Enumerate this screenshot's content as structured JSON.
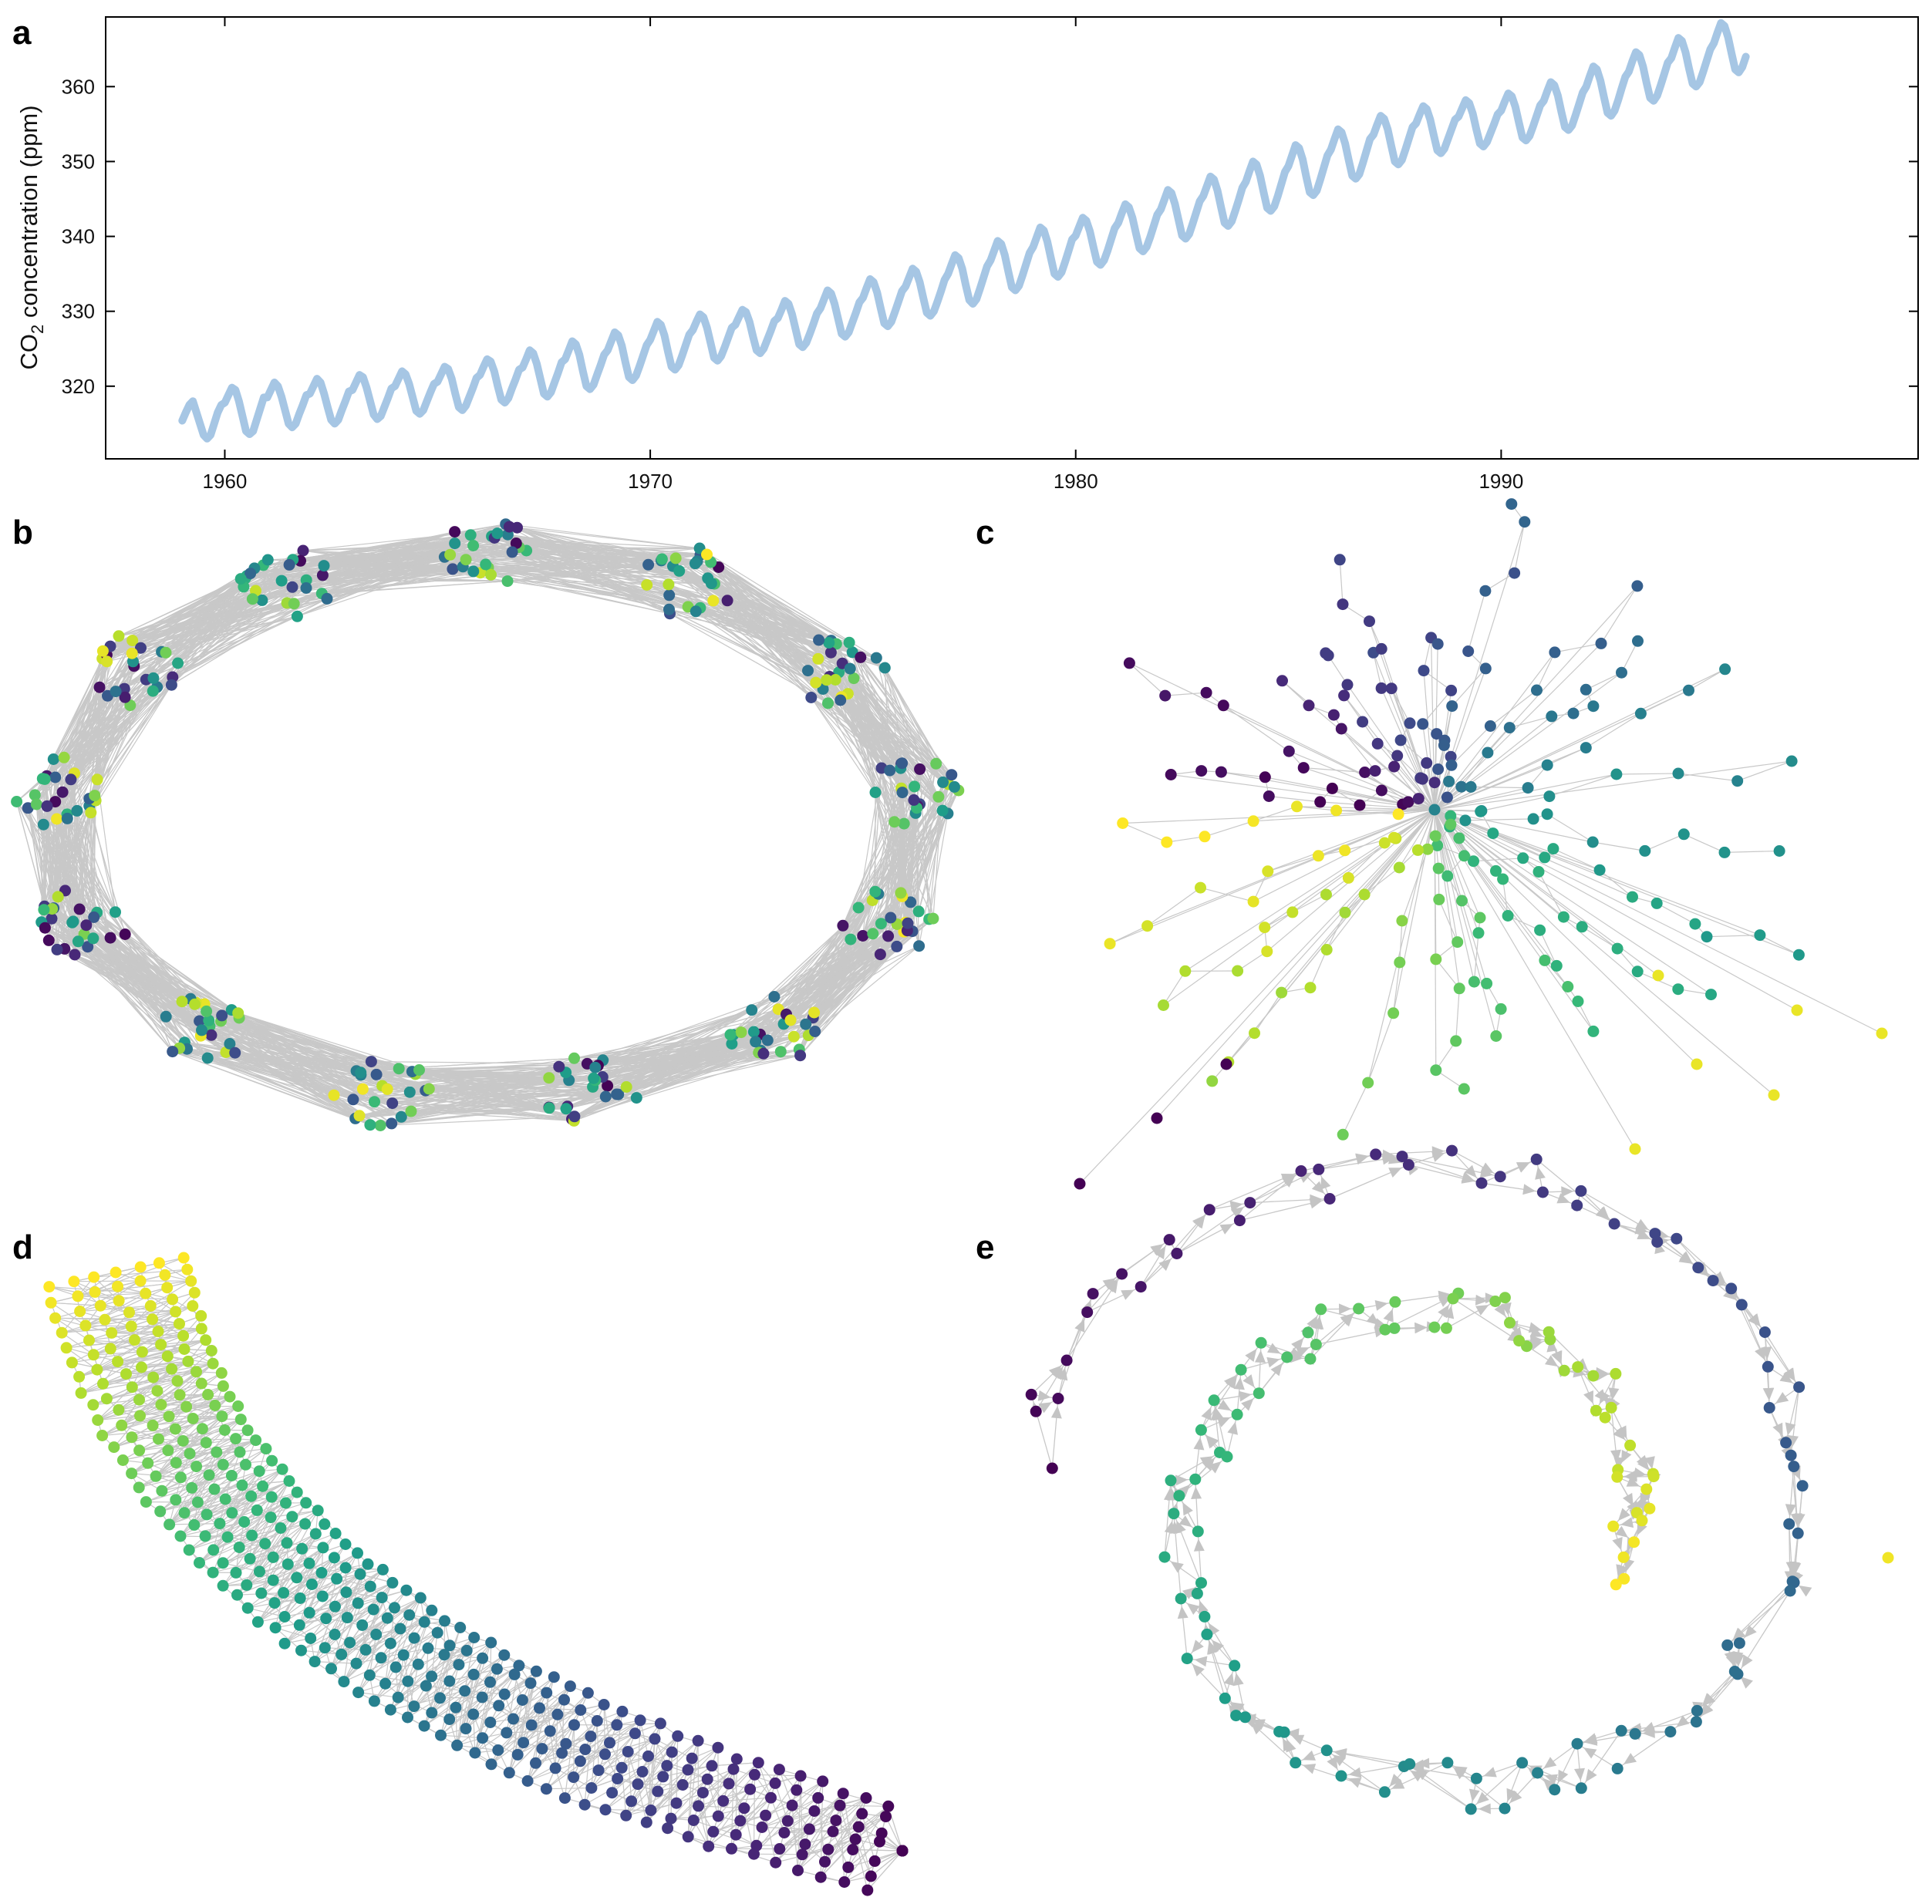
{
  "chart_data": [
    {
      "panel": "a",
      "type": "line",
      "ylabel": "CO2 concentration (ppm)",
      "ylabel_main": "CO",
      "ylabel_sub": "2",
      "ylabel_rest": " concentration (ppm)",
      "xlim": [
        1957.2,
        1999.8
      ],
      "ylim": [
        310.3,
        369.3
      ],
      "xticks": [
        1960,
        1970,
        1980,
        1990
      ],
      "yticks": [
        320,
        330,
        340,
        350,
        360
      ],
      "series": [
        {
          "color": "#a6c6e4",
          "sampling": "monthly, start 1959.0",
          "values": [
            315.4,
            316.5,
            317.5,
            318.0,
            316.5,
            315.0,
            313.5,
            313.0,
            313.5,
            315.0,
            316.5,
            317.5,
            317.8,
            318.8,
            319.8,
            319.5,
            318.0,
            316.0,
            314.0,
            313.6,
            314.0,
            315.5,
            317.0,
            318.5,
            318.5,
            319.5,
            320.5,
            320.0,
            318.6,
            316.8,
            315.0,
            314.5,
            315.0,
            316.3,
            317.5,
            318.8,
            319.0,
            320.0,
            321.0,
            320.5,
            319.0,
            317.2,
            315.5,
            315.0,
            315.5,
            316.8,
            318.0,
            319.3,
            319.5,
            320.5,
            321.5,
            321.2,
            319.8,
            318.0,
            316.2,
            315.6,
            316.0,
            317.2,
            318.4,
            319.7,
            320.0,
            321.0,
            322.0,
            321.6,
            320.3,
            318.5,
            316.7,
            316.3,
            316.8,
            318.0,
            319.2,
            320.3,
            320.6,
            321.6,
            322.6,
            322.3,
            321.0,
            319.0,
            317.2,
            316.8,
            317.4,
            318.6,
            319.8,
            321.1,
            321.5,
            322.6,
            323.6,
            323.3,
            322.0,
            320.0,
            318.2,
            317.8,
            318.4,
            319.7,
            320.9,
            322.2,
            322.5,
            323.6,
            324.8,
            324.4,
            323.0,
            321.0,
            319.0,
            318.6,
            319.2,
            320.5,
            321.8,
            323.2,
            323.6,
            324.8,
            326.0,
            325.6,
            324.2,
            322.0,
            320.0,
            319.6,
            320.2,
            321.5,
            322.8,
            324.2,
            324.8,
            326.0,
            327.2,
            326.8,
            325.4,
            323.2,
            321.2,
            320.8,
            321.4,
            322.7,
            324.1,
            325.5,
            326.2,
            327.4,
            328.6,
            328.2,
            326.8,
            324.6,
            322.6,
            322.2,
            322.8,
            324.1,
            325.5,
            326.9,
            327.5,
            328.6,
            329.6,
            329.2,
            327.8,
            325.8,
            323.8,
            323.4,
            324.0,
            325.2,
            326.5,
            327.8,
            328.2,
            329.2,
            330.2,
            329.9,
            328.6,
            326.6,
            324.8,
            324.4,
            325.0,
            326.2,
            327.4,
            328.7,
            329.1,
            330.2,
            331.4,
            331.0,
            329.6,
            327.6,
            325.6,
            325.2,
            325.8,
            327.0,
            328.3,
            329.7,
            330.4,
            331.6,
            332.8,
            332.4,
            331.0,
            329.0,
            327.0,
            326.6,
            327.2,
            328.5,
            329.8,
            331.2,
            331.8,
            333.1,
            334.3,
            333.9,
            332.5,
            330.4,
            328.4,
            328.0,
            328.6,
            329.9,
            331.3,
            332.7,
            333.3,
            334.5,
            335.7,
            335.3,
            333.9,
            331.8,
            329.8,
            329.4,
            330.0,
            331.3,
            332.7,
            334.2,
            335.0,
            336.3,
            337.5,
            337.1,
            335.7,
            333.5,
            331.5,
            331.0,
            331.6,
            333.0,
            334.5,
            336.0,
            336.8,
            338.1,
            339.4,
            339.0,
            337.5,
            335.3,
            333.2,
            332.8,
            333.4,
            334.8,
            336.3,
            337.8,
            338.6,
            339.9,
            341.2,
            340.8,
            339.3,
            337.1,
            335.0,
            334.6,
            335.2,
            336.6,
            338.1,
            339.6,
            340.1,
            341.3,
            342.5,
            342.1,
            340.7,
            338.6,
            336.6,
            336.2,
            336.8,
            338.1,
            339.6,
            341.1,
            341.8,
            343.1,
            344.3,
            343.9,
            342.5,
            340.4,
            338.4,
            338.0,
            338.6,
            339.9,
            341.4,
            342.9,
            343.6,
            344.9,
            346.2,
            345.8,
            344.3,
            342.2,
            340.1,
            339.7,
            340.3,
            341.7,
            343.2,
            344.7,
            345.4,
            346.7,
            348.0,
            347.6,
            346.1,
            343.9,
            341.8,
            341.4,
            342.0,
            343.4,
            344.9,
            346.5,
            347.3,
            348.7,
            350.0,
            349.6,
            348.1,
            345.9,
            343.8,
            343.4,
            344.0,
            345.4,
            347.0,
            348.6,
            349.4,
            350.8,
            352.2,
            351.8,
            350.3,
            348.0,
            345.9,
            345.5,
            346.1,
            347.6,
            349.2,
            350.8,
            351.6,
            353.0,
            354.3,
            353.9,
            352.4,
            350.2,
            348.1,
            347.7,
            348.3,
            349.8,
            351.4,
            353.0,
            353.6,
            354.9,
            356.1,
            355.7,
            354.3,
            352.1,
            350.0,
            349.6,
            350.2,
            351.6,
            353.1,
            354.6,
            355.1,
            356.3,
            357.4,
            357.0,
            355.6,
            353.5,
            351.5,
            351.1,
            351.7,
            353.0,
            354.3,
            355.6,
            356.0,
            357.1,
            358.2,
            357.8,
            356.4,
            354.3,
            352.4,
            352.0,
            352.6,
            353.8,
            355.0,
            356.3,
            356.8,
            358.0,
            359.1,
            358.7,
            357.3,
            355.2,
            353.2,
            352.8,
            353.4,
            354.7,
            356.1,
            357.5,
            358.1,
            359.4,
            360.6,
            360.2,
            358.8,
            356.6,
            354.6,
            354.2,
            354.8,
            356.2,
            357.7,
            359.2,
            360.0,
            361.4,
            362.7,
            362.3,
            360.8,
            358.6,
            356.5,
            356.1,
            356.8,
            358.2,
            359.8,
            361.3,
            362.0,
            363.4,
            364.6,
            364.2,
            362.7,
            360.5,
            358.5,
            358.1,
            358.8,
            360.2,
            361.7,
            363.2,
            363.8,
            365.2,
            366.5,
            366.1,
            364.6,
            362.4,
            360.4,
            360.0,
            360.6,
            362.0,
            363.5,
            365.0,
            365.8,
            367.2,
            368.5,
            368.1,
            366.6,
            364.4,
            362.3,
            361.9,
            362.6,
            364.0
          ]
        }
      ]
    },
    {
      "panel": "b",
      "type": "scatter",
      "layout": "graph embedding: ring of 13 clusters, nodes colored by viridis index, dense grey edges between neighbouring clusters"
    },
    {
      "panel": "c",
      "type": "scatter",
      "layout": "graph embedding: radial star of branches around a hub, nodes colored by viridis index, grey edges"
    },
    {
      "panel": "d",
      "type": "scatter",
      "layout": "graph embedding: curved tube from top-left (yellow) to bottom-right (purple), dense grey edges"
    },
    {
      "panel": "e",
      "type": "scatter",
      "layout": "directed graph embedding: spiral of nodes with arrowed grey edges, purple outer arm to yellow inner arm"
    }
  ],
  "panels": {
    "a": {
      "letter": "a"
    },
    "b": {
      "letter": "b"
    },
    "c": {
      "letter": "c"
    },
    "d": {
      "letter": "d"
    },
    "e": {
      "letter": "e"
    }
  },
  "colors": {
    "line": "#a6c6e4",
    "edge": "#c8c8c8",
    "colormap": "viridis"
  }
}
